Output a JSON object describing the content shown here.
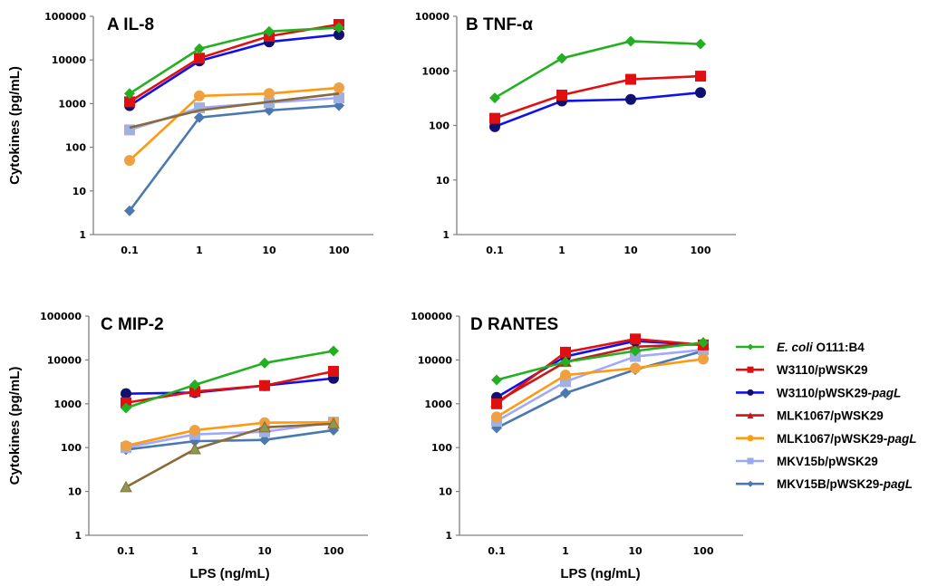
{
  "chart_data": [
    {
      "type": "line",
      "panel": "A",
      "title": "A IL-8",
      "xlabel": "",
      "ylabel": "Cytokines (pg/mL)",
      "x_scale": "categorical",
      "y_scale": "log",
      "ylim": [
        1,
        100000
      ],
      "categories": [
        "0.1",
        "1",
        "10",
        "100"
      ],
      "yticks": [
        "1",
        "10",
        "100",
        "1000",
        "10000",
        "100000"
      ],
      "grid": false,
      "series": [
        {
          "name": "E. coli O111:B4",
          "values": [
            1700,
            18000,
            45000,
            55000
          ]
        },
        {
          "name": "W3110/pWSK29",
          "values": [
            1100,
            11000,
            35000,
            65000
          ]
        },
        {
          "name": "W3110/pWSK29-pagL",
          "values": [
            900,
            9500,
            26000,
            38000
          ]
        },
        {
          "name": "MLK1067/pWSK29",
          "values": [
            280,
            700,
            1100,
            1700
          ]
        },
        {
          "name": "MLK1067/pWSK29-pagL",
          "values": [
            50,
            1500,
            1700,
            2300
          ]
        },
        {
          "name": "MKV15b/pWSK29",
          "values": [
            250,
            800,
            1050,
            1350
          ]
        },
        {
          "name": "MKV15B/pWSK29-pagL",
          "values": [
            3.5,
            480,
            700,
            900
          ]
        }
      ]
    },
    {
      "type": "line",
      "panel": "B",
      "title": "B TNF-α",
      "xlabel": "",
      "ylabel": "",
      "x_scale": "categorical",
      "y_scale": "log",
      "ylim": [
        1,
        10000
      ],
      "categories": [
        "0.1",
        "1",
        "10",
        "100"
      ],
      "yticks": [
        "1",
        "10",
        "100",
        "1000",
        "10000"
      ],
      "grid": false,
      "series": [
        {
          "name": "E. coli O111:B4",
          "values": [
            320,
            1700,
            3500,
            3100
          ]
        },
        {
          "name": "W3110/pWSK29",
          "values": [
            135,
            360,
            700,
            800
          ]
        },
        {
          "name": "W3110/pWSK29-pagL",
          "values": [
            95,
            280,
            300,
            400
          ]
        }
      ]
    },
    {
      "type": "line",
      "panel": "C",
      "title": "C MIP-2",
      "xlabel": "LPS (ng/mL)",
      "ylabel": "Cytokines (pg/mL)",
      "x_scale": "categorical",
      "y_scale": "log",
      "ylim": [
        1,
        100000
      ],
      "categories": [
        "0.1",
        "1",
        "10",
        "100"
      ],
      "yticks": [
        "1",
        "10",
        "100",
        "1000",
        "10000",
        "100000"
      ],
      "grid": false,
      "series": [
        {
          "name": "E. coli O111:B4",
          "values": [
            800,
            2700,
            8500,
            16000
          ]
        },
        {
          "name": "W3110/pWSK29",
          "values": [
            1050,
            1900,
            2600,
            5500
          ]
        },
        {
          "name": "W3110/pWSK29-pagL",
          "values": [
            1700,
            1800,
            2600,
            3800
          ]
        },
        {
          "name": "MLK1067/pWSK29",
          "values": [
            12.5,
            92,
            290,
            350
          ]
        },
        {
          "name": "MLK1067/pWSK29-pagL",
          "values": [
            110,
            250,
            370,
            380
          ]
        },
        {
          "name": "MKV15b/pWSK29",
          "values": [
            100,
            200,
            230,
            380
          ]
        },
        {
          "name": "MKV15B/pWSK29-pagL",
          "values": [
            90,
            140,
            150,
            250
          ]
        }
      ]
    },
    {
      "type": "line",
      "panel": "D",
      "title": "D RANTES",
      "xlabel": "LPS (ng/mL)",
      "ylabel": "",
      "x_scale": "categorical",
      "y_scale": "log",
      "ylim": [
        1,
        100000
      ],
      "categories": [
        "0.1",
        "1",
        "10",
        "100"
      ],
      "yticks": [
        "1",
        "10",
        "100",
        "1000",
        "10000",
        "100000"
      ],
      "grid": false,
      "series": [
        {
          "name": "E. coli O111:B4",
          "values": [
            3500,
            9000,
            16000,
            25000
          ]
        },
        {
          "name": "W3110/pWSK29",
          "values": [
            1000,
            15000,
            30000,
            22000
          ]
        },
        {
          "name": "W3110/pWSK29-pagL",
          "values": [
            1400,
            12000,
            27000,
            22000
          ]
        },
        {
          "name": "MLK1067/pWSK29",
          "values": [
            1100,
            9000,
            20000,
            23000
          ]
        },
        {
          "name": "MLK1067/pWSK29-pagL",
          "values": [
            500,
            4500,
            6500,
            10500
          ]
        },
        {
          "name": "MKV15b/pWSK29",
          "values": [
            400,
            3200,
            12000,
            17000
          ]
        },
        {
          "name": "MKV15B/pWSK29-pagL",
          "values": [
            280,
            1750,
            6000,
            16000
          ]
        }
      ]
    }
  ],
  "legend": {
    "placement": "right of panel D",
    "items": [
      {
        "italic_prefix": "E. coli",
        "text": " O111:B4",
        "italic_suffix": "",
        "color": "#22b022",
        "marker": "diamond"
      },
      {
        "italic_prefix": "",
        "text": "W3110/pWSK29",
        "italic_suffix": "",
        "color": "#e01010",
        "marker": "square"
      },
      {
        "italic_prefix": "",
        "text": "W3110/pWSK29-",
        "italic_suffix": "pagL",
        "color": "#1010ee",
        "marker": "circle"
      },
      {
        "italic_prefix": "",
        "text": "MLK1067/pWSK29",
        "italic_suffix": "",
        "color": "#c81818",
        "marker": "triangle"
      },
      {
        "italic_prefix": "",
        "text": "MLK1067/pWSK29-",
        "italic_suffix": "pagL",
        "color": "#ff9a10",
        "marker": "circle"
      },
      {
        "italic_prefix": "",
        "text": "MKV15b/pWSK29",
        "italic_suffix": "",
        "color": "#9aa8f0",
        "marker": "square"
      },
      {
        "italic_prefix": "",
        "text": "MKV15B/pWSK29-",
        "italic_suffix": "pagL",
        "color": "#4a78b0",
        "marker": "diamond"
      }
    ]
  },
  "series_style": [
    {
      "line": "#22b022",
      "fill": "#22b022",
      "marker": "diamond"
    },
    {
      "line": "#e01010",
      "fill": "#e01010",
      "marker": "square"
    },
    {
      "line": "#1010ee",
      "fill": "#101070",
      "marker": "circle"
    },
    {
      "line": "#c81818",
      "fill": "#c81818",
      "marker": "triangle"
    },
    {
      "line": "#ff9a10",
      "fill": "#f0a040",
      "marker": "circle"
    },
    {
      "line": "#a0a8ff",
      "fill": "#a0b0e0",
      "marker": "square"
    },
    {
      "line": "#4a78b0",
      "fill": "#4a78b0",
      "marker": "diamond"
    }
  ],
  "panel_overrides": {
    "A": {
      "3": {
        "line": "#8b6a3a",
        "marker": "none"
      }
    },
    "C": {
      "3": {
        "line": "#8b6a3a",
        "fill": "#8a9a50",
        "marker": "triangle"
      }
    }
  }
}
